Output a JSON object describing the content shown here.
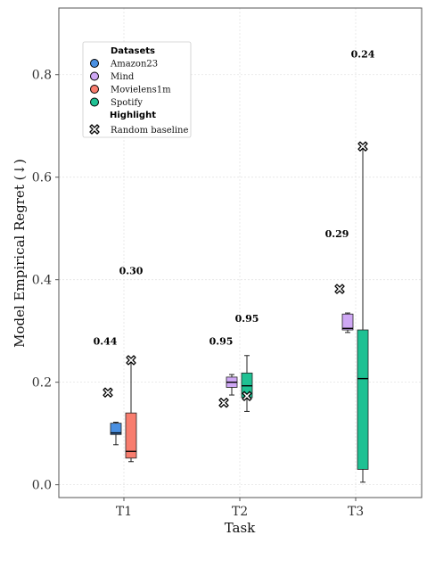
{
  "chart_data": {
    "type": "box",
    "xlabel": "Task",
    "ylabel": "Model  Empirical Regret (↓)",
    "ylim": [
      -0.025,
      0.93
    ],
    "yticks": [
      0.0,
      0.2,
      0.4,
      0.6,
      0.8
    ],
    "ytick_labels": [
      "0.0",
      "0.2",
      "0.4",
      "0.6",
      "0.8"
    ],
    "categories": [
      "T1",
      "T2",
      "T3"
    ],
    "grid": true,
    "legend": {
      "placement": "top-left",
      "datasets_title": "Datasets",
      "highlight_title": "Highlight",
      "random_label": "Random baseline",
      "entries": [
        {
          "name": "Amazon23",
          "color": "#4a90e2"
        },
        {
          "name": "Mind",
          "color": "#cfa8f5"
        },
        {
          "name": "Movielens1m",
          "color": "#f87d6e"
        },
        {
          "name": "Spotify",
          "color": "#1fc193"
        }
      ]
    },
    "boxes": [
      {
        "category": "T1",
        "dataset": "Amazon23",
        "color": "#4a90e2",
        "whisker_low": 0.078,
        "q1": 0.098,
        "median": 0.101,
        "q3": 0.12,
        "whisker_high": 0.122,
        "random_baseline": 0.18,
        "annotation": "0.44",
        "annotation_y": 0.28,
        "slot": 0
      },
      {
        "category": "T1",
        "dataset": "Movielens1m",
        "color": "#f87d6e",
        "whisker_low": 0.045,
        "q1": 0.052,
        "median": 0.065,
        "q3": 0.14,
        "whisker_high": 0.243,
        "random_baseline": 0.243,
        "annotation": "0.30",
        "annotation_y": 0.418,
        "slot": 1
      },
      {
        "category": "T2",
        "dataset": "Mind",
        "color": "#cfa8f5",
        "whisker_low": 0.175,
        "q1": 0.19,
        "median": 0.2,
        "q3": 0.21,
        "whisker_high": 0.215,
        "random_baseline": 0.16,
        "annotation": "0.95",
        "annotation_y": 0.28,
        "slot": 0
      },
      {
        "category": "T2",
        "dataset": "Spotify",
        "color": "#1fc193",
        "whisker_low": 0.143,
        "q1": 0.17,
        "median": 0.193,
        "q3": 0.218,
        "whisker_high": 0.252,
        "random_baseline": 0.173,
        "annotation": "0.95",
        "annotation_y": 0.325,
        "slot": 1
      },
      {
        "category": "T3",
        "dataset": "Mind",
        "color": "#cfa8f5",
        "whisker_low": 0.297,
        "q1": 0.302,
        "median": 0.305,
        "q3": 0.333,
        "whisker_high": 0.335,
        "random_baseline": 0.382,
        "annotation": "0.29",
        "annotation_y": 0.49,
        "slot": 0
      },
      {
        "category": "T3",
        "dataset": "Spotify",
        "color": "#1fc193",
        "whisker_low": 0.005,
        "q1": 0.03,
        "median": 0.207,
        "q3": 0.302,
        "whisker_high": 0.66,
        "random_baseline": 0.66,
        "annotation": "0.24",
        "annotation_y": 0.84,
        "slot": 1
      }
    ]
  }
}
